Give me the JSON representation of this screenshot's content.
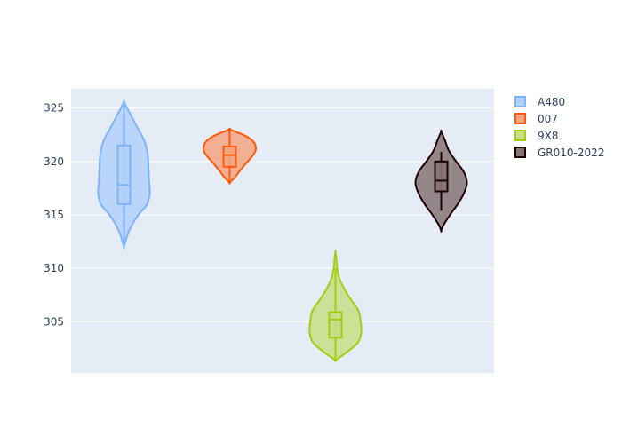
{
  "chart_data": {
    "type": "violin",
    "y_ticks": [
      305,
      310,
      315,
      320,
      325
    ],
    "ylim": [
      300.2,
      326.8
    ],
    "grid": true,
    "legend_placement": "top-right",
    "series": [
      {
        "name": "A480",
        "color": "#7eb3f5",
        "fill": "#b3d1fa",
        "box": {
          "q1": 316.0,
          "median": 317.8,
          "q3": 321.5
        },
        "min": 312.0,
        "max": 325.6,
        "whisker": [
          312.0,
          325.6
        ],
        "density": [
          [
            312.0,
            0.0
          ],
          [
            313.0,
            0.12
          ],
          [
            314.0,
            0.3
          ],
          [
            315.0,
            0.56
          ],
          [
            316.0,
            0.9
          ],
          [
            317.0,
            1.0
          ],
          [
            318.0,
            0.98
          ],
          [
            319.0,
            0.96
          ],
          [
            320.0,
            0.94
          ],
          [
            321.0,
            0.9
          ],
          [
            322.0,
            0.78
          ],
          [
            323.0,
            0.56
          ],
          [
            324.0,
            0.34
          ],
          [
            325.0,
            0.12
          ],
          [
            325.6,
            0.0
          ]
        ]
      },
      {
        "name": "007",
        "color": "#ff5a0a",
        "fill": "#f5a582",
        "box": {
          "q1": 319.5,
          "median": 320.6,
          "q3": 321.4
        },
        "min": 318.0,
        "max": 323.0,
        "whisker": [
          318.0,
          323.0
        ],
        "density": [
          [
            318.0,
            0.0
          ],
          [
            318.5,
            0.2
          ],
          [
            319.0,
            0.36
          ],
          [
            319.5,
            0.52
          ],
          [
            320.0,
            0.7
          ],
          [
            320.5,
            0.88
          ],
          [
            321.0,
            1.0
          ],
          [
            321.5,
            1.0
          ],
          [
            322.0,
            0.86
          ],
          [
            322.5,
            0.52
          ],
          [
            323.0,
            0.0
          ]
        ]
      },
      {
        "name": "9X8",
        "color": "#a3cd14",
        "fill": "#c9de87",
        "box": {
          "q1": 303.5,
          "median": 305.2,
          "q3": 305.9
        },
        "min": 301.4,
        "max": 311.6,
        "whisker": [
          301.4,
          310.0
        ],
        "density": [
          [
            301.4,
            0.0
          ],
          [
            302.0,
            0.36
          ],
          [
            303.0,
            0.86
          ],
          [
            304.0,
            1.0
          ],
          [
            305.0,
            0.98
          ],
          [
            306.0,
            0.9
          ],
          [
            307.0,
            0.62
          ],
          [
            308.0,
            0.36
          ],
          [
            309.0,
            0.16
          ],
          [
            310.0,
            0.07
          ],
          [
            311.0,
            0.03
          ],
          [
            311.6,
            0.0
          ]
        ]
      },
      {
        "name": "GR010-2022",
        "color": "#1f0000",
        "fill": "#867577",
        "box": {
          "q1": 317.2,
          "median": 318.2,
          "q3": 320.0
        },
        "min": 313.5,
        "max": 322.8,
        "whisker": [
          315.4,
          320.9
        ],
        "density": [
          [
            313.5,
            0.0
          ],
          [
            314.0,
            0.08
          ],
          [
            315.0,
            0.34
          ],
          [
            316.0,
            0.64
          ],
          [
            317.0,
            0.88
          ],
          [
            318.0,
            1.0
          ],
          [
            319.0,
            0.88
          ],
          [
            320.0,
            0.58
          ],
          [
            321.0,
            0.3
          ],
          [
            322.0,
            0.14
          ],
          [
            322.8,
            0.0
          ]
        ]
      }
    ]
  }
}
